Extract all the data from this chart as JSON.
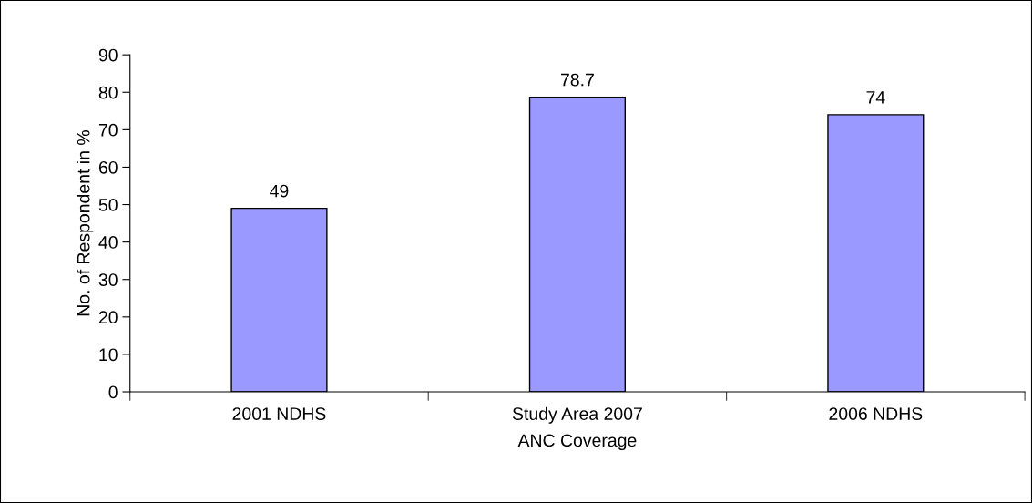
{
  "chart_data": {
    "type": "bar",
    "categories": [
      "2001 NDHS",
      "Study Area 2007",
      "2006 NDHS"
    ],
    "values": [
      49,
      78.7,
      74
    ],
    "color": "#9999ff",
    "xlabel": "ANC Coverage",
    "ylabel": "No. of Respondent in %",
    "ylim": [
      0,
      90
    ],
    "yticks": [
      0,
      10,
      20,
      30,
      40,
      50,
      60,
      70,
      80,
      90
    ],
    "data_labels": true,
    "grid": false,
    "legend": false
  }
}
